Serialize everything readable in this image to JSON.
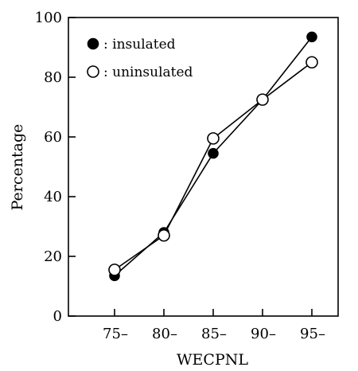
{
  "chart_data": {
    "type": "line",
    "xlabel": "WECPNL",
    "ylabel": "Percentage",
    "categories": [
      "75–",
      "80–",
      "85–",
      "90–",
      "95–"
    ],
    "ylim": [
      0,
      100
    ],
    "yticks": [
      0,
      20,
      40,
      60,
      80,
      100
    ],
    "grid": false,
    "legend_position": "top-left",
    "series": [
      {
        "name": ": insulated",
        "marker": "filled-circle",
        "values": [
          13.5,
          28,
          54.5,
          72.5,
          93.5
        ]
      },
      {
        "name": ": uninsulated",
        "marker": "open-circle",
        "values": [
          15.5,
          27,
          59.5,
          72.5,
          85
        ]
      }
    ]
  }
}
